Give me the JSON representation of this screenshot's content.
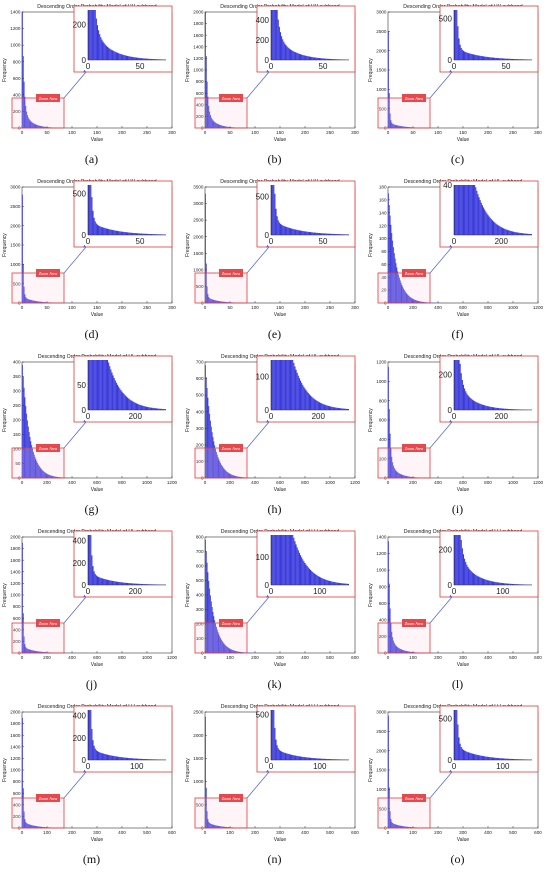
{
  "colors": {
    "bar": "#3b3bdc",
    "bar_dark": "#1a1acc",
    "zoom_box": "#e03a3a",
    "zoom_label_bg": "#e5484d",
    "zoom_label_text": "#ffffff",
    "arrow": "#4f5fd6"
  },
  "zoom_label": "Zoom Area",
  "chart_data": [
    {
      "type": "bar",
      "caption": "(a)",
      "title": "Descending Order Probability Model of HH subband",
      "xlabel": "Value",
      "ylabel": "Frequency",
      "xlim": [
        0,
        300
      ],
      "ylim": [
        0,
        1400
      ],
      "xticks": [
        0,
        50,
        100,
        150,
        200,
        250,
        300
      ],
      "yticks": [
        0,
        200,
        400,
        600,
        800,
        1000,
        1200,
        1400
      ],
      "decay": {
        "start": 1400,
        "shape": "long-tail"
      },
      "zoom": {
        "xlim": [
          0,
          75
        ],
        "ylim": [
          0,
          280
        ],
        "xticks": [
          0,
          50
        ],
        "yticks": [
          0,
          200
        ]
      }
    },
    {
      "type": "bar",
      "caption": "(b)",
      "title": "Descending Order Probability Model of HH subband",
      "xlabel": "Value",
      "ylabel": "Frequency",
      "xlim": [
        0,
        300
      ],
      "ylim": [
        0,
        2000
      ],
      "xticks": [
        0,
        50,
        100,
        150,
        200,
        250,
        300
      ],
      "yticks": [
        0,
        200,
        400,
        600,
        800,
        1000,
        1200,
        1400,
        1600,
        1800,
        2000
      ],
      "decay": {
        "start": 2000,
        "shape": "long-tail"
      },
      "zoom": {
        "xlim": [
          0,
          75
        ],
        "ylim": [
          0,
          500
        ],
        "xticks": [
          0,
          50
        ],
        "yticks": [
          0,
          200,
          400
        ]
      }
    },
    {
      "type": "bar",
      "caption": "(c)",
      "title": "Descending Order Probability Model of HH subband",
      "xlabel": "Value",
      "ylabel": "Frequency",
      "xlim": [
        0,
        300
      ],
      "ylim": [
        0,
        3000
      ],
      "xticks": [
        0,
        50,
        100,
        150,
        200,
        250,
        300
      ],
      "yticks": [
        0,
        500,
        1000,
        1500,
        2000,
        2500,
        3000
      ],
      "decay": {
        "start": 2500,
        "shape": "sharp"
      },
      "zoom": {
        "xlim": [
          0,
          75
        ],
        "ylim": [
          0,
          600
        ],
        "xticks": [
          0,
          50
        ],
        "yticks": [
          0,
          500
        ]
      }
    },
    {
      "type": "bar",
      "caption": "(d)",
      "title": "Descending Order Probability Model of HH subband",
      "xlabel": "Value",
      "ylabel": "Frequency",
      "xlim": [
        0,
        300
      ],
      "ylim": [
        0,
        3000
      ],
      "xticks": [
        0,
        50,
        100,
        150,
        200,
        250,
        300
      ],
      "yticks": [
        0,
        500,
        1000,
        1500,
        2000,
        2500,
        3000
      ],
      "decay": {
        "start": 2800,
        "shape": "sharp"
      },
      "zoom": {
        "xlim": [
          0,
          75
        ],
        "ylim": [
          0,
          600
        ],
        "xticks": [
          0,
          50
        ],
        "yticks": [
          0,
          500
        ]
      }
    },
    {
      "type": "bar",
      "caption": "(e)",
      "title": "Descending Order Probability Model of HH subband",
      "xlabel": "Value",
      "ylabel": "Frequency",
      "xlim": [
        0,
        300
      ],
      "ylim": [
        0,
        3500
      ],
      "xticks": [
        0,
        50,
        100,
        150,
        200,
        250,
        300
      ],
      "yticks": [
        0,
        500,
        1000,
        1500,
        2000,
        2500,
        3000,
        3500
      ],
      "decay": {
        "start": 3300,
        "shape": "sharp"
      },
      "zoom": {
        "xlim": [
          0,
          75
        ],
        "ylim": [
          0,
          650
        ],
        "xticks": [
          0,
          50
        ],
        "yticks": [
          0,
          500
        ]
      }
    },
    {
      "type": "bar",
      "caption": "(f)",
      "title": "Descending Order Probability Model of HL subband",
      "xlabel": "Value",
      "ylabel": "Frequency",
      "xlim": [
        0,
        1200
      ],
      "ylim": [
        0,
        180
      ],
      "xticks": [
        0,
        200,
        400,
        600,
        800,
        1000,
        1200
      ],
      "yticks": [
        0,
        20,
        40,
        60,
        80,
        100,
        120,
        140,
        160,
        180
      ],
      "decay": {
        "start": 170,
        "shape": "wide"
      },
      "zoom": {
        "xlim": [
          0,
          330
        ],
        "ylim": [
          0,
          40
        ],
        "xticks": [
          0,
          200
        ],
        "yticks": [
          40
        ]
      }
    },
    {
      "type": "bar",
      "caption": "(g)",
      "title": "Descending Order Probability Model of HL subband",
      "xlabel": "Value",
      "ylabel": "Frequency",
      "xlim": [
        0,
        1200
      ],
      "ylim": [
        0,
        400
      ],
      "xticks": [
        0,
        200,
        400,
        600,
        800,
        1000,
        1200
      ],
      "yticks": [
        0,
        50,
        100,
        150,
        200,
        250,
        300,
        350,
        400
      ],
      "decay": {
        "start": 390,
        "shape": "wide"
      },
      "zoom": {
        "xlim": [
          0,
          330
        ],
        "ylim": [
          0,
          100
        ],
        "xticks": [
          0,
          200
        ],
        "yticks": [
          0,
          50
        ]
      }
    },
    {
      "type": "bar",
      "caption": "(h)",
      "title": "Descending Order Probability Model of HL subband",
      "xlabel": "Value",
      "ylabel": "Frequency",
      "xlim": [
        0,
        1200
      ],
      "ylim": [
        0,
        700
      ],
      "xticks": [
        0,
        200,
        400,
        600,
        800,
        1000,
        1200
      ],
      "yticks": [
        0,
        100,
        200,
        300,
        400,
        500,
        600,
        700
      ],
      "decay": {
        "start": 680,
        "shape": "wide"
      },
      "zoom": {
        "xlim": [
          0,
          330
        ],
        "ylim": [
          0,
          150
        ],
        "xticks": [
          0,
          200
        ],
        "yticks": [
          0,
          100
        ]
      }
    },
    {
      "type": "bar",
      "caption": "(i)",
      "title": "Descending Order Probability Model of HL subband",
      "xlabel": "Value",
      "ylabel": "Frequency",
      "xlim": [
        0,
        1200
      ],
      "ylim": [
        0,
        1200
      ],
      "xticks": [
        0,
        200,
        400,
        600,
        800,
        1000,
        1200
      ],
      "yticks": [
        0,
        200,
        400,
        600,
        800,
        1000,
        1200
      ],
      "decay": {
        "start": 1150,
        "shape": "long-tail"
      },
      "zoom": {
        "xlim": [
          0,
          330
        ],
        "ylim": [
          0,
          280
        ],
        "xticks": [
          0,
          200
        ],
        "yticks": [
          0,
          200
        ]
      }
    },
    {
      "type": "bar",
      "caption": "(j)",
      "title": "Descending Order Probability Model of HL subband",
      "xlabel": "Value",
      "ylabel": "Frequency",
      "xlim": [
        0,
        1200
      ],
      "ylim": [
        0,
        2000
      ],
      "xticks": [
        0,
        200,
        400,
        600,
        800,
        1000,
        1200
      ],
      "yticks": [
        0,
        200,
        400,
        600,
        800,
        1000,
        1200,
        1400,
        1600,
        1800,
        2000
      ],
      "decay": {
        "start": 1900,
        "shape": "sharp"
      },
      "zoom": {
        "xlim": [
          0,
          330
        ],
        "ylim": [
          0,
          450
        ],
        "xticks": [
          0,
          200
        ],
        "yticks": [
          0,
          200,
          400
        ]
      }
    },
    {
      "type": "bar",
      "caption": "(k)",
      "title": "Descending Order Probability Model of LH subband",
      "xlabel": "Value",
      "ylabel": "Frequency",
      "xlim": [
        0,
        600
      ],
      "ylim": [
        0,
        800
      ],
      "xticks": [
        0,
        100,
        200,
        300,
        400,
        500,
        600
      ],
      "yticks": [
        0,
        100,
        200,
        300,
        400,
        500,
        600,
        700,
        800
      ],
      "decay": {
        "start": 780,
        "shape": "wide"
      },
      "zoom": {
        "xlim": [
          0,
          160
        ],
        "ylim": [
          0,
          180
        ],
        "xticks": [
          0,
          100
        ],
        "yticks": [
          0,
          100
        ]
      }
    },
    {
      "type": "bar",
      "caption": "(l)",
      "title": "Descending Order Probability Model of LH subband",
      "xlabel": "Value",
      "ylabel": "Frequency",
      "xlim": [
        0,
        600
      ],
      "ylim": [
        0,
        1400
      ],
      "xticks": [
        0,
        100,
        200,
        300,
        400,
        500,
        600
      ],
      "yticks": [
        0,
        200,
        400,
        600,
        800,
        1000,
        1200,
        1400
      ],
      "decay": {
        "start": 1350,
        "shape": "long-tail"
      },
      "zoom": {
        "xlim": [
          0,
          160
        ],
        "ylim": [
          0,
          280
        ],
        "xticks": [
          0,
          100
        ],
        "yticks": [
          0,
          200
        ]
      }
    },
    {
      "type": "bar",
      "caption": "(m)",
      "title": "Descending Order Probability Model of LH subband",
      "xlabel": "Value",
      "ylabel": "Frequency",
      "xlim": [
        0,
        600
      ],
      "ylim": [
        0,
        2000
      ],
      "xticks": [
        0,
        100,
        200,
        300,
        400,
        500,
        600
      ],
      "yticks": [
        0,
        200,
        400,
        600,
        800,
        1000,
        1200,
        1400,
        1600,
        1800,
        2000
      ],
      "decay": {
        "start": 1900,
        "shape": "sharp"
      },
      "zoom": {
        "xlim": [
          0,
          160
        ],
        "ylim": [
          0,
          450
        ],
        "xticks": [
          0,
          100
        ],
        "yticks": [
          0,
          200,
          400
        ]
      }
    },
    {
      "type": "bar",
      "caption": "(n)",
      "title": "Descending Order Probability Model of LH subband",
      "xlabel": "Value",
      "ylabel": "Frequency",
      "xlim": [
        0,
        600
      ],
      "ylim": [
        0,
        2500
      ],
      "xticks": [
        0,
        100,
        200,
        300,
        400,
        500,
        600
      ],
      "yticks": [
        0,
        500,
        1000,
        1500,
        2000,
        2500
      ],
      "decay": {
        "start": 2400,
        "shape": "sharp"
      },
      "zoom": {
        "xlim": [
          0,
          160
        ],
        "ylim": [
          0,
          550
        ],
        "xticks": [
          0,
          100
        ],
        "yticks": [
          0,
          500
        ]
      }
    },
    {
      "type": "bar",
      "caption": "(o)",
      "title": "Descending Order Probability Model of LH subband",
      "xlabel": "Value",
      "ylabel": "Frequency",
      "xlim": [
        0,
        600
      ],
      "ylim": [
        0,
        3000
      ],
      "xticks": [
        0,
        100,
        200,
        300,
        400,
        500,
        600
      ],
      "yticks": [
        0,
        500,
        1000,
        1500,
        2000,
        2500,
        3000
      ],
      "decay": {
        "start": 2900,
        "shape": "sharp"
      },
      "zoom": {
        "xlim": [
          0,
          160
        ],
        "ylim": [
          0,
          600
        ],
        "xticks": [
          0,
          100
        ],
        "yticks": [
          0,
          500
        ]
      }
    }
  ]
}
